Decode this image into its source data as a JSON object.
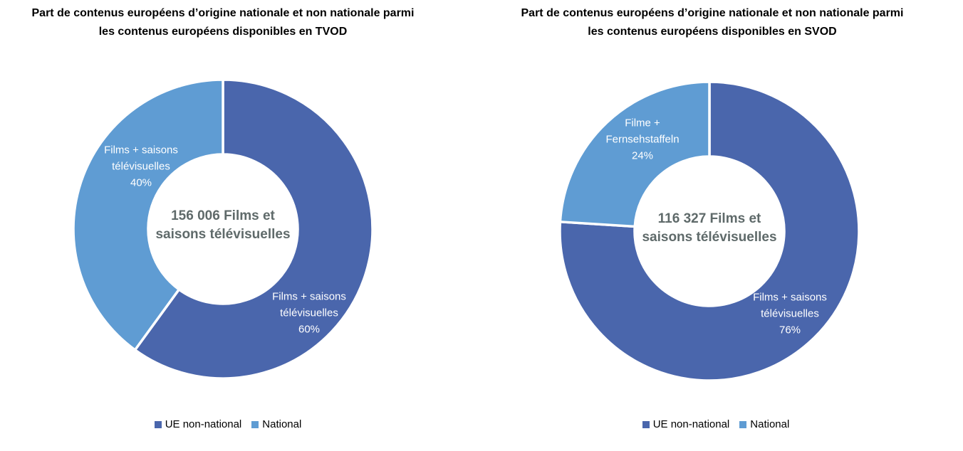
{
  "page_background": "#ffffff",
  "colors": {
    "ue_non_national": "#4A66AC",
    "national": "#5F9CD3",
    "slice_divider": "#ffffff",
    "title_text": "#000000",
    "slice_label_text": "#ffffff",
    "center_label_text": "#5F6A6A",
    "legend_text": "#000000"
  },
  "chart_data": [
    {
      "type": "pie",
      "subtype": "donut",
      "title": "Part de contenus européens d’origine nationale et non nationale parmi les contenus européens disponibles en TVOD",
      "title_lines": [
        "Part de contenus européens d’origine nationale et non nationale parmi",
        "les contenus européens disponibles en TVOD"
      ],
      "total_label": "156 006 Films et saisons télévisuelles",
      "center_label_lines": [
        "156 006 Films et",
        "saisons télévisuelles"
      ],
      "donut_hole_ratio": 0.5,
      "start_angle_deg": 0,
      "direction": "clockwise",
      "legend_position": "bottom",
      "legend": [
        "UE non-national",
        "National"
      ],
      "slices": [
        {
          "series": "UE non-national",
          "label": "Films + saisons télévisuelles",
          "label_lines": [
            "Films + saisons",
            "télévisuelles",
            "60%"
          ],
          "percent": 60,
          "color": "#4A66AC"
        },
        {
          "series": "National",
          "label": "Films + saisons télévisuelles",
          "label_lines": [
            "Films + saisons",
            "télévisuelles",
            "40%"
          ],
          "percent": 40,
          "color": "#5F9CD3"
        }
      ]
    },
    {
      "type": "pie",
      "subtype": "donut",
      "title": "Part de contenus européens d’origine nationale et non nationale parmi les contenus européens disponibles en SVOD",
      "title_lines": [
        "Part de contenus européens d’origine nationale et non nationale parmi",
        "les contenus européens disponibles en SVOD"
      ],
      "total_label": "116 327 Films et saisons télévisuelles",
      "center_label_lines": [
        "116 327 Films et",
        "saisons télévisuelles"
      ],
      "donut_hole_ratio": 0.5,
      "start_angle_deg": 0,
      "direction": "clockwise",
      "legend_position": "bottom",
      "legend": [
        "UE non-national",
        "National"
      ],
      "slices": [
        {
          "series": "UE non-national",
          "label": "Films + saisons télévisuelles",
          "label_lines": [
            "Films + saisons",
            "télévisuelles",
            "76%"
          ],
          "percent": 76,
          "color": "#4A66AC"
        },
        {
          "series": "National",
          "label": "Filme + Fernsehstaffeln",
          "label_lines": [
            "Filme +",
            "Fernsehstaffeln",
            "24%"
          ],
          "percent": 24,
          "color": "#5F9CD3"
        }
      ]
    }
  ]
}
